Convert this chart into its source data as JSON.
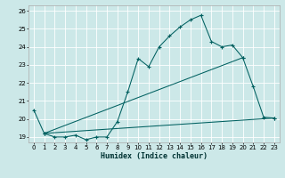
{
  "xlabel": "Humidex (Indice chaleur)",
  "bg_color": "#cce8e8",
  "line_color": "#006060",
  "grid_color": "#ffffff",
  "xlim": [
    -0.5,
    23.5
  ],
  "ylim": [
    18.7,
    26.3
  ],
  "yticks": [
    19,
    20,
    21,
    22,
    23,
    24,
    25,
    26
  ],
  "xticks": [
    0,
    1,
    2,
    3,
    4,
    5,
    6,
    7,
    8,
    9,
    10,
    11,
    12,
    13,
    14,
    15,
    16,
    17,
    18,
    19,
    20,
    21,
    22,
    23
  ],
  "series1_x": [
    0,
    1,
    2,
    3,
    4,
    5,
    6,
    7,
    8,
    9,
    10,
    11,
    12,
    13,
    14,
    15,
    16,
    17,
    18,
    19,
    20,
    21,
    22,
    23
  ],
  "series1_y": [
    20.5,
    19.2,
    19.0,
    19.0,
    19.1,
    18.85,
    19.0,
    19.0,
    19.85,
    21.5,
    23.35,
    22.9,
    24.0,
    24.6,
    25.1,
    25.5,
    25.75,
    24.3,
    24.0,
    24.1,
    23.4,
    21.8,
    20.1,
    20.05
  ],
  "line1_x": [
    1,
    23
  ],
  "line1_y": [
    19.2,
    20.05
  ],
  "line2_x": [
    1,
    20
  ],
  "line2_y": [
    19.2,
    23.4
  ]
}
